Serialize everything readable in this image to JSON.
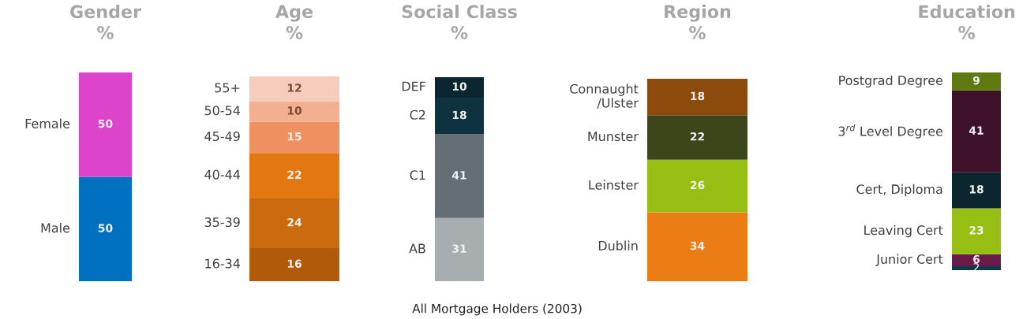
{
  "chart_data": [
    {
      "type": "bar",
      "title": "Gender\n%",
      "categories": [
        null
      ],
      "stacked": true,
      "data_labels": true,
      "tick_labels": false,
      "series": [
        {
          "name": "Male",
          "color": "#0070c0",
          "values": [
            50
          ]
        },
        {
          "name": "Female",
          "color": "#dd44cc",
          "values": [
            50
          ]
        }
      ]
    },
    {
      "type": "bar",
      "title": "Age\n%",
      "categories": [
        null
      ],
      "stacked": true,
      "data_labels": true,
      "tick_labels": false,
      "series": [
        {
          "name": "16-34",
          "color": "#b05a0a",
          "values": [
            16
          ]
        },
        {
          "name": "35-39",
          "color": "#cc6a10",
          "values": [
            24
          ]
        },
        {
          "name": "40-44",
          "color": "#e37812",
          "values": [
            22
          ]
        },
        {
          "name": "45-49",
          "color": "#ee9060",
          "values": [
            15
          ]
        },
        {
          "name": "50-54",
          "color": "#f2b090",
          "values": [
            10
          ]
        },
        {
          "name": "55+",
          "color": "#f7ccbc",
          "values": [
            12
          ]
        }
      ]
    },
    {
      "type": "bar",
      "title": "Social Class\n%",
      "categories": [
        null
      ],
      "stacked": true,
      "data_labels": true,
      "tick_labels": false,
      "annotations": [
        "All Mortgage Holders (2003)"
      ],
      "series": [
        {
          "name": "AB",
          "color": "#a8adb0",
          "values": [
            31
          ]
        },
        {
          "name": "C1",
          "color": "#636e75",
          "values": [
            41
          ]
        },
        {
          "name": "C2",
          "color": "#0e3240",
          "values": [
            18
          ]
        },
        {
          "name": "DEF",
          "color": "#0b2630",
          "values": [
            10
          ]
        }
      ]
    },
    {
      "type": "bar",
      "title": "Region\n%",
      "categories": [
        null
      ],
      "stacked": true,
      "data_labels": true,
      "tick_labels": false,
      "series": [
        {
          "name": "Dublin",
          "color": "#ec7c14",
          "values": [
            34
          ]
        },
        {
          "name": "Leinster",
          "color": "#97be12",
          "values": [
            26
          ]
        },
        {
          "name": "Munster",
          "color": "#3c461a",
          "values": [
            22
          ]
        },
        {
          "name": "Connaught\n/Ulster",
          "color": "#8c4a0c",
          "values": [
            18
          ]
        }
      ]
    },
    {
      "type": "bar",
      "title": "Education\n%",
      "categories": [
        null
      ],
      "stacked": true,
      "data_labels": true,
      "tick_labels": false,
      "series": [
        {
          "color": "#0d3a4c",
          "values": [
            2
          ]
        },
        {
          "name": "Junior Cert",
          "color": "#6a1a48",
          "values": [
            6
          ]
        },
        {
          "name": "Leaving Cert",
          "color": "#97be12",
          "values": [
            23
          ]
        },
        {
          "name": "Cert, Diploma",
          "color": "#0c2630",
          "values": [
            18
          ]
        },
        {
          "name": "3$^{rd}$ Level Degree",
          "color": "#3d1228",
          "values": [
            41
          ]
        },
        {
          "name": "Postgrad Degree",
          "color": "#5f7a10",
          "values": [
            9
          ]
        }
      ]
    }
  ]
}
